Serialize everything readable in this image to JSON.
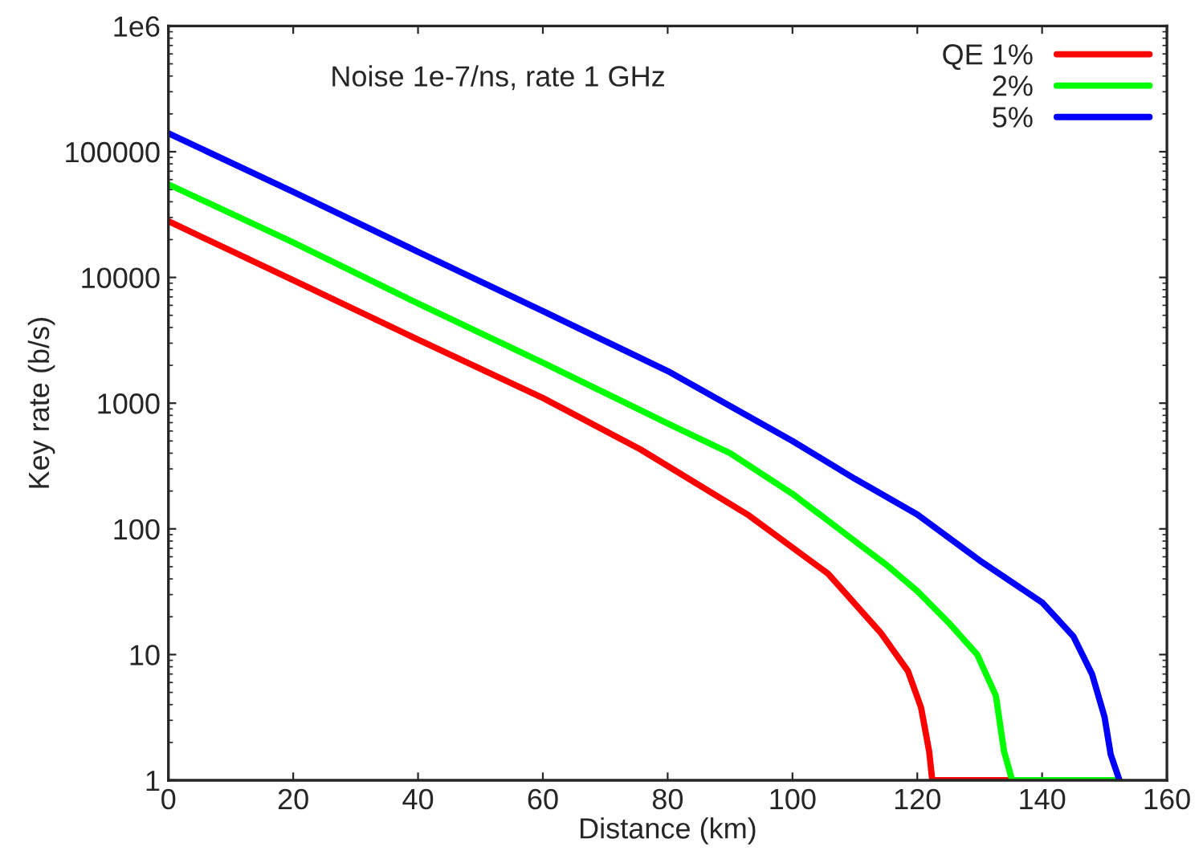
{
  "chart_data": {
    "type": "line",
    "xlabel": "Distance (km)",
    "ylabel": "Key rate (b/s)",
    "annotations": [
      "Noise 1e-7/ns, rate 1 GHz"
    ],
    "log": "y",
    "xlim": [
      0,
      160
    ],
    "xticks": [
      0,
      20,
      40,
      60,
      80,
      100,
      120,
      140,
      160
    ],
    "ylim": [
      1,
      1000000
    ],
    "yticks": [
      1,
      10,
      100,
      1000,
      10000,
      100000,
      {
        "value": 1000000,
        "label": "1e6"
      }
    ],
    "grid": false,
    "legend": "top right",
    "line_style": "solid",
    "marker": "none",
    "series": [
      {
        "name": "QE 1%",
        "color": "#ff0000",
        "x": [
          0,
          20,
          40,
          60,
          75.6,
          92.8,
          105.7,
          114.1,
          118.5,
          120.6,
          121.9,
          122.4,
          135
        ],
        "values": [
          28000,
          9500,
          3200,
          1100,
          430,
          130,
          44,
          15,
          7.4,
          3.8,
          1.7,
          1,
          1
        ]
      },
      {
        "name": "2%",
        "color": "#00ff00",
        "x": [
          0,
          20,
          40,
          60,
          80,
          90,
          100,
          110,
          115,
          120,
          125,
          129.6,
          132.6,
          133.9,
          135.2,
          152.4
        ],
        "values": [
          55000,
          19000,
          6200,
          2100,
          690,
          400,
          190,
          80,
          52,
          32,
          18,
          10,
          4.7,
          1.7,
          1,
          1
        ]
      },
      {
        "name": "5%",
        "color": "#0000ff",
        "x": [
          0,
          20,
          40,
          60,
          80,
          100,
          110,
          120,
          130,
          140,
          145,
          148,
          150,
          151,
          152.4
        ],
        "values": [
          140000,
          48000,
          16000,
          5400,
          1800,
          500,
          250,
          130,
          56,
          26,
          14,
          7,
          3.2,
          1.6,
          1
        ]
      }
    ]
  }
}
